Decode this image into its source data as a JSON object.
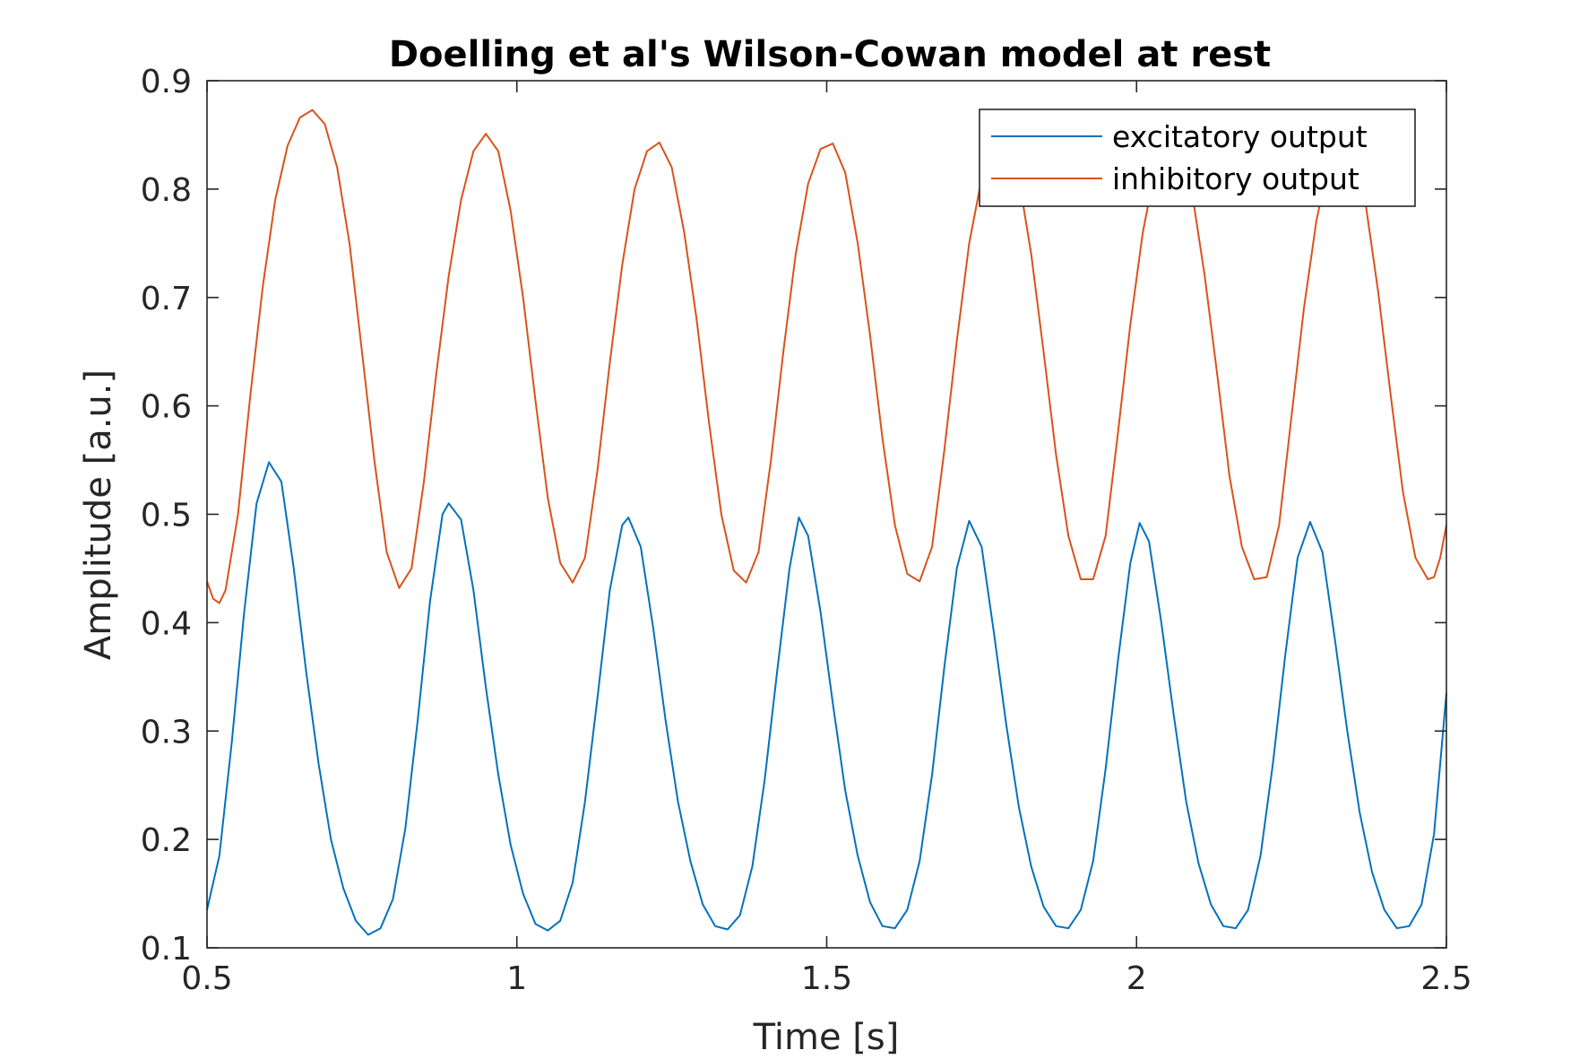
{
  "chart_data": {
    "type": "line",
    "title": "Doelling et al's Wilson-Cowan model at rest",
    "xlabel": "Time [s]",
    "ylabel": "Amplitude [a.u.]",
    "xlim": [
      0.5,
      2.5
    ],
    "ylim": [
      0.1,
      0.9
    ],
    "xticks": [
      0.5,
      1,
      1.5,
      2,
      2.5
    ],
    "xtick_labels": [
      "0.5",
      "1",
      "1.5",
      "2",
      "2.5"
    ],
    "yticks": [
      0.1,
      0.2,
      0.3,
      0.4,
      0.5,
      0.6,
      0.7,
      0.8,
      0.9
    ],
    "ytick_labels": [
      "0.1",
      "0.2",
      "0.3",
      "0.4",
      "0.5",
      "0.6",
      "0.7",
      "0.8",
      "0.9"
    ],
    "grid": false,
    "legend_position": "top-right",
    "series": [
      {
        "name": "excitatory output",
        "color": "#0072BD",
        "points": [
          [
            0.5,
            0.135
          ],
          [
            0.52,
            0.185
          ],
          [
            0.54,
            0.29
          ],
          [
            0.56,
            0.41
          ],
          [
            0.58,
            0.51
          ],
          [
            0.6,
            0.548
          ],
          [
            0.62,
            0.53
          ],
          [
            0.64,
            0.45
          ],
          [
            0.66,
            0.355
          ],
          [
            0.68,
            0.27
          ],
          [
            0.7,
            0.2
          ],
          [
            0.72,
            0.155
          ],
          [
            0.74,
            0.125
          ],
          [
            0.76,
            0.112
          ],
          [
            0.78,
            0.118
          ],
          [
            0.8,
            0.145
          ],
          [
            0.82,
            0.21
          ],
          [
            0.84,
            0.31
          ],
          [
            0.86,
            0.42
          ],
          [
            0.88,
            0.5
          ],
          [
            0.89,
            0.51
          ],
          [
            0.91,
            0.495
          ],
          [
            0.93,
            0.43
          ],
          [
            0.95,
            0.34
          ],
          [
            0.97,
            0.26
          ],
          [
            0.99,
            0.195
          ],
          [
            1.01,
            0.15
          ],
          [
            1.03,
            0.122
          ],
          [
            1.05,
            0.116
          ],
          [
            1.07,
            0.125
          ],
          [
            1.09,
            0.16
          ],
          [
            1.11,
            0.235
          ],
          [
            1.13,
            0.33
          ],
          [
            1.15,
            0.43
          ],
          [
            1.17,
            0.49
          ],
          [
            1.18,
            0.497
          ],
          [
            1.2,
            0.47
          ],
          [
            1.22,
            0.395
          ],
          [
            1.24,
            0.31
          ],
          [
            1.26,
            0.235
          ],
          [
            1.28,
            0.18
          ],
          [
            1.3,
            0.14
          ],
          [
            1.32,
            0.12
          ],
          [
            1.34,
            0.117
          ],
          [
            1.36,
            0.13
          ],
          [
            1.38,
            0.175
          ],
          [
            1.4,
            0.255
          ],
          [
            1.42,
            0.355
          ],
          [
            1.44,
            0.45
          ],
          [
            1.455,
            0.497
          ],
          [
            1.47,
            0.48
          ],
          [
            1.49,
            0.41
          ],
          [
            1.51,
            0.325
          ],
          [
            1.53,
            0.245
          ],
          [
            1.55,
            0.185
          ],
          [
            1.57,
            0.142
          ],
          [
            1.59,
            0.12
          ],
          [
            1.61,
            0.118
          ],
          [
            1.63,
            0.135
          ],
          [
            1.65,
            0.18
          ],
          [
            1.67,
            0.26
          ],
          [
            1.69,
            0.36
          ],
          [
            1.71,
            0.45
          ],
          [
            1.73,
            0.494
          ],
          [
            1.75,
            0.47
          ],
          [
            1.77,
            0.39
          ],
          [
            1.79,
            0.305
          ],
          [
            1.81,
            0.23
          ],
          [
            1.83,
            0.175
          ],
          [
            1.85,
            0.138
          ],
          [
            1.87,
            0.12
          ],
          [
            1.89,
            0.118
          ],
          [
            1.91,
            0.135
          ],
          [
            1.93,
            0.18
          ],
          [
            1.95,
            0.265
          ],
          [
            1.97,
            0.365
          ],
          [
            1.99,
            0.455
          ],
          [
            2.005,
            0.492
          ],
          [
            2.02,
            0.475
          ],
          [
            2.04,
            0.4
          ],
          [
            2.06,
            0.315
          ],
          [
            2.08,
            0.235
          ],
          [
            2.1,
            0.178
          ],
          [
            2.12,
            0.14
          ],
          [
            2.14,
            0.12
          ],
          [
            2.16,
            0.118
          ],
          [
            2.18,
            0.135
          ],
          [
            2.2,
            0.185
          ],
          [
            2.22,
            0.27
          ],
          [
            2.24,
            0.37
          ],
          [
            2.26,
            0.46
          ],
          [
            2.28,
            0.493
          ],
          [
            2.3,
            0.465
          ],
          [
            2.32,
            0.385
          ],
          [
            2.34,
            0.3
          ],
          [
            2.36,
            0.225
          ],
          [
            2.38,
            0.17
          ],
          [
            2.4,
            0.135
          ],
          [
            2.42,
            0.118
          ],
          [
            2.44,
            0.12
          ],
          [
            2.46,
            0.14
          ],
          [
            2.48,
            0.205
          ],
          [
            2.5,
            0.335
          ]
        ]
      },
      {
        "name": "inhibitory output",
        "color": "#D95319",
        "points": [
          [
            0.5,
            0.438
          ],
          [
            0.51,
            0.422
          ],
          [
            0.52,
            0.418
          ],
          [
            0.53,
            0.43
          ],
          [
            0.55,
            0.5
          ],
          [
            0.57,
            0.61
          ],
          [
            0.59,
            0.71
          ],
          [
            0.61,
            0.79
          ],
          [
            0.63,
            0.84
          ],
          [
            0.65,
            0.866
          ],
          [
            0.67,
            0.873
          ],
          [
            0.69,
            0.86
          ],
          [
            0.71,
            0.82
          ],
          [
            0.73,
            0.75
          ],
          [
            0.75,
            0.65
          ],
          [
            0.77,
            0.55
          ],
          [
            0.79,
            0.465
          ],
          [
            0.81,
            0.432
          ],
          [
            0.83,
            0.45
          ],
          [
            0.85,
            0.53
          ],
          [
            0.87,
            0.63
          ],
          [
            0.89,
            0.72
          ],
          [
            0.91,
            0.79
          ],
          [
            0.93,
            0.835
          ],
          [
            0.95,
            0.851
          ],
          [
            0.97,
            0.835
          ],
          [
            0.99,
            0.78
          ],
          [
            1.01,
            0.7
          ],
          [
            1.03,
            0.605
          ],
          [
            1.05,
            0.515
          ],
          [
            1.07,
            0.455
          ],
          [
            1.09,
            0.437
          ],
          [
            1.11,
            0.46
          ],
          [
            1.13,
            0.54
          ],
          [
            1.15,
            0.64
          ],
          [
            1.17,
            0.73
          ],
          [
            1.19,
            0.8
          ],
          [
            1.21,
            0.835
          ],
          [
            1.23,
            0.843
          ],
          [
            1.25,
            0.82
          ],
          [
            1.27,
            0.76
          ],
          [
            1.29,
            0.68
          ],
          [
            1.31,
            0.585
          ],
          [
            1.33,
            0.5
          ],
          [
            1.35,
            0.448
          ],
          [
            1.37,
            0.437
          ],
          [
            1.39,
            0.465
          ],
          [
            1.41,
            0.55
          ],
          [
            1.43,
            0.65
          ],
          [
            1.45,
            0.74
          ],
          [
            1.47,
            0.805
          ],
          [
            1.49,
            0.837
          ],
          [
            1.51,
            0.842
          ],
          [
            1.53,
            0.815
          ],
          [
            1.55,
            0.75
          ],
          [
            1.57,
            0.665
          ],
          [
            1.59,
            0.57
          ],
          [
            1.61,
            0.49
          ],
          [
            1.63,
            0.445
          ],
          [
            1.65,
            0.438
          ],
          [
            1.67,
            0.47
          ],
          [
            1.69,
            0.56
          ],
          [
            1.71,
            0.66
          ],
          [
            1.73,
            0.75
          ],
          [
            1.75,
            0.81
          ],
          [
            1.77,
            0.84
          ],
          [
            1.79,
            0.84
          ],
          [
            1.81,
            0.81
          ],
          [
            1.83,
            0.74
          ],
          [
            1.85,
            0.65
          ],
          [
            1.87,
            0.555
          ],
          [
            1.89,
            0.48
          ],
          [
            1.91,
            0.44
          ],
          [
            1.93,
            0.44
          ],
          [
            1.95,
            0.48
          ],
          [
            1.97,
            0.575
          ],
          [
            1.99,
            0.675
          ],
          [
            2.01,
            0.76
          ],
          [
            2.03,
            0.818
          ],
          [
            2.05,
            0.84
          ],
          [
            2.07,
            0.835
          ],
          [
            2.09,
            0.795
          ],
          [
            2.11,
            0.72
          ],
          [
            2.13,
            0.63
          ],
          [
            2.15,
            0.535
          ],
          [
            2.17,
            0.47
          ],
          [
            2.19,
            0.44
          ],
          [
            2.21,
            0.442
          ],
          [
            2.23,
            0.49
          ],
          [
            2.25,
            0.59
          ],
          [
            2.27,
            0.69
          ],
          [
            2.29,
            0.77
          ],
          [
            2.31,
            0.825
          ],
          [
            2.33,
            0.84
          ],
          [
            2.35,
            0.83
          ],
          [
            2.37,
            0.785
          ],
          [
            2.39,
            0.705
          ],
          [
            2.41,
            0.61
          ],
          [
            2.43,
            0.52
          ],
          [
            2.45,
            0.46
          ],
          [
            2.47,
            0.44
          ],
          [
            2.48,
            0.442
          ],
          [
            2.49,
            0.46
          ],
          [
            2.5,
            0.49
          ]
        ]
      }
    ]
  }
}
